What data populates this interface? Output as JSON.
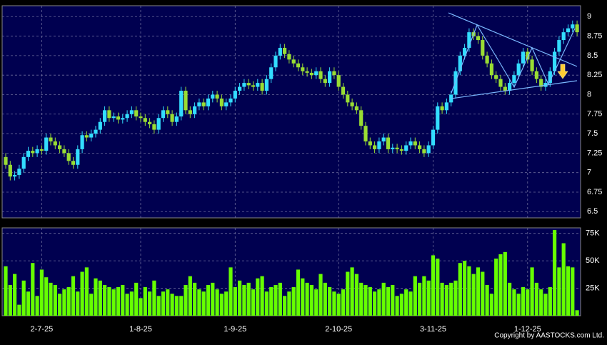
{
  "chart_data": {
    "type": "candlestick",
    "categories": [
      null,
      null,
      null,
      null,
      null,
      null,
      null,
      null,
      "2-7-25",
      null,
      null,
      null,
      null,
      null,
      null,
      null,
      null,
      null,
      null,
      null,
      null,
      null,
      null,
      null,
      null,
      null,
      null,
      null,
      null,
      null,
      "1-8-25",
      null,
      null,
      null,
      null,
      null,
      null,
      null,
      null,
      null,
      null,
      null,
      null,
      null,
      null,
      null,
      null,
      null,
      null,
      null,
      null,
      "1-9-25",
      null,
      null,
      null,
      null,
      null,
      null,
      null,
      null,
      null,
      null,
      null,
      null,
      null,
      null,
      null,
      null,
      null,
      null,
      null,
      null,
      null,
      null,
      "2-10-25",
      null,
      null,
      null,
      null,
      null,
      null,
      null,
      null,
      null,
      null,
      null,
      null,
      null,
      null,
      null,
      null,
      null,
      null,
      null,
      null,
      "3-11-25",
      null,
      null,
      null,
      null,
      null,
      null,
      null,
      null,
      null,
      null,
      null,
      null,
      null,
      null,
      null,
      null,
      null,
      null,
      null,
      null,
      "1-12-25",
      null,
      null,
      null,
      null,
      null,
      null,
      null,
      null,
      null,
      null,
      null
    ],
    "open": [
      7.2,
      7.1,
      6.95,
      6.97,
      7.05,
      7.2,
      7.28,
      7.25,
      7.3,
      7.28,
      7.45,
      7.4,
      7.35,
      7.3,
      7.25,
      7.15,
      7.1,
      7.3,
      7.48,
      7.45,
      7.5,
      7.55,
      7.65,
      7.8,
      7.7,
      7.72,
      7.68,
      7.7,
      7.75,
      7.8,
      7.72,
      7.7,
      7.65,
      7.62,
      7.55,
      7.7,
      7.8,
      7.75,
      7.65,
      7.72,
      8.05,
      7.8,
      7.75,
      7.85,
      7.9,
      7.85,
      7.95,
      8.0,
      7.95,
      7.85,
      7.9,
      7.95,
      8.05,
      8.1,
      8.15,
      8.12,
      8.1,
      8.15,
      8.05,
      8.2,
      8.35,
      8.5,
      8.6,
      8.52,
      8.45,
      8.4,
      8.35,
      8.3,
      8.28,
      8.25,
      8.3,
      8.2,
      8.15,
      8.3,
      8.25,
      8.1,
      8.0,
      7.9,
      7.85,
      7.8,
      7.6,
      7.4,
      7.35,
      7.3,
      7.4,
      7.45,
      7.3,
      7.32,
      7.3,
      7.28,
      7.35,
      7.4,
      7.35,
      7.3,
      7.25,
      7.35,
      7.55,
      7.85,
      7.8,
      7.9,
      8.0,
      8.3,
      8.5,
      8.6,
      8.8,
      8.75,
      8.7,
      8.5,
      8.4,
      8.25,
      8.2,
      8.1,
      8.05,
      8.15,
      8.25,
      8.4,
      8.55,
      8.45,
      8.3,
      8.2,
      8.1,
      8.15,
      8.3,
      8.55,
      8.7,
      8.8,
      8.85,
      8.9
    ],
    "high": [
      7.25,
      7.15,
      7.02,
      7.1,
      7.25,
      7.33,
      7.33,
      7.35,
      7.35,
      7.5,
      7.5,
      7.45,
      7.4,
      7.35,
      7.3,
      7.2,
      7.35,
      7.53,
      7.53,
      7.55,
      7.6,
      7.7,
      7.85,
      7.85,
      7.77,
      7.77,
      7.75,
      7.8,
      7.85,
      7.85,
      7.77,
      7.75,
      7.7,
      7.67,
      7.75,
      7.85,
      7.85,
      7.8,
      7.77,
      8.1,
      8.1,
      7.85,
      7.9,
      7.95,
      7.95,
      8.0,
      8.05,
      8.05,
      8.0,
      7.95,
      8.0,
      8.1,
      8.15,
      8.2,
      8.2,
      8.17,
      8.2,
      8.2,
      8.25,
      8.4,
      8.55,
      8.65,
      8.65,
      8.57,
      8.5,
      8.45,
      8.4,
      8.35,
      8.33,
      8.35,
      8.35,
      8.25,
      8.35,
      8.35,
      8.3,
      8.15,
      8.05,
      7.95,
      7.9,
      7.85,
      7.65,
      7.45,
      7.4,
      7.45,
      7.5,
      7.5,
      7.37,
      7.37,
      7.35,
      7.4,
      7.45,
      7.45,
      7.4,
      7.35,
      7.4,
      7.6,
      7.9,
      7.9,
      7.95,
      8.05,
      8.35,
      8.55,
      8.65,
      8.85,
      8.85,
      8.8,
      8.75,
      8.55,
      8.45,
      8.3,
      8.25,
      8.15,
      8.2,
      8.3,
      8.45,
      8.6,
      8.6,
      8.5,
      8.35,
      8.25,
      8.2,
      8.35,
      8.6,
      8.75,
      8.85,
      8.9,
      8.95,
      8.95
    ],
    "low": [
      7.05,
      6.9,
      6.9,
      6.92,
      7.0,
      7.15,
      7.2,
      7.2,
      7.23,
      7.23,
      7.35,
      7.3,
      7.25,
      7.2,
      7.1,
      7.05,
      7.05,
      7.25,
      7.4,
      7.4,
      7.45,
      7.5,
      7.6,
      7.65,
      7.65,
      7.63,
      7.63,
      7.65,
      7.7,
      7.67,
      7.65,
      7.6,
      7.57,
      7.5,
      7.5,
      7.65,
      7.7,
      7.6,
      7.6,
      7.67,
      7.75,
      7.7,
      7.7,
      7.8,
      7.8,
      7.8,
      7.9,
      7.9,
      7.8,
      7.8,
      7.85,
      7.9,
      8.0,
      8.05,
      8.07,
      8.05,
      8.05,
      8.0,
      8.0,
      8.15,
      8.3,
      8.45,
      8.47,
      8.4,
      8.35,
      8.3,
      8.25,
      8.23,
      8.2,
      8.2,
      8.15,
      8.1,
      8.1,
      8.2,
      8.05,
      7.95,
      7.85,
      7.8,
      7.75,
      7.55,
      7.35,
      7.3,
      7.25,
      7.25,
      7.35,
      7.25,
      7.25,
      7.25,
      7.23,
      7.23,
      7.3,
      7.3,
      7.25,
      7.2,
      7.2,
      7.3,
      7.5,
      7.75,
      7.75,
      7.85,
      7.95,
      8.25,
      8.45,
      8.55,
      8.7,
      8.65,
      8.45,
      8.35,
      8.2,
      8.15,
      8.05,
      8.0,
      8.0,
      8.1,
      8.2,
      8.35,
      8.4,
      8.25,
      8.15,
      8.05,
      8.05,
      8.1,
      8.25,
      8.5,
      8.65,
      8.75,
      8.8,
      8.75
    ],
    "close": [
      7.1,
      6.95,
      6.97,
      7.05,
      7.2,
      7.28,
      7.25,
      7.3,
      7.28,
      7.45,
      7.4,
      7.35,
      7.3,
      7.25,
      7.15,
      7.1,
      7.3,
      7.48,
      7.45,
      7.5,
      7.55,
      7.65,
      7.8,
      7.7,
      7.72,
      7.68,
      7.7,
      7.75,
      7.8,
      7.72,
      7.7,
      7.65,
      7.62,
      7.55,
      7.7,
      7.8,
      7.75,
      7.65,
      7.72,
      8.05,
      7.8,
      7.75,
      7.85,
      7.9,
      7.85,
      7.95,
      8.0,
      7.95,
      7.85,
      7.9,
      7.95,
      8.05,
      8.1,
      8.15,
      8.12,
      8.1,
      8.15,
      8.05,
      8.2,
      8.35,
      8.5,
      8.6,
      8.52,
      8.45,
      8.4,
      8.35,
      8.3,
      8.28,
      8.25,
      8.3,
      8.2,
      8.15,
      8.3,
      8.25,
      8.1,
      8.0,
      7.9,
      7.85,
      7.8,
      7.6,
      7.4,
      7.35,
      7.3,
      7.4,
      7.45,
      7.3,
      7.32,
      7.3,
      7.28,
      7.35,
      7.4,
      7.35,
      7.3,
      7.25,
      7.35,
      7.55,
      7.85,
      7.8,
      7.9,
      8.0,
      8.3,
      8.5,
      8.6,
      8.8,
      8.75,
      8.7,
      8.5,
      8.4,
      8.25,
      8.2,
      8.1,
      8.05,
      8.15,
      8.25,
      8.4,
      8.55,
      8.45,
      8.3,
      8.2,
      8.1,
      8.15,
      8.3,
      8.55,
      8.7,
      8.8,
      8.85,
      8.9,
      8.8
    ],
    "volume": [
      45000,
      28000,
      38000,
      10000,
      32000,
      22000,
      48000,
      18000,
      42000,
      35000,
      30000,
      28000,
      20000,
      24000,
      26000,
      36000,
      22000,
      40000,
      44000,
      20000,
      34000,
      32000,
      28000,
      26000,
      24000,
      26000,
      28000,
      20000,
      22000,
      30000,
      16000,
      26000,
      22000,
      32000,
      18000,
      22000,
      24000,
      20000,
      18000,
      18000,
      28000,
      36000,
      30000,
      24000,
      22000,
      28000,
      30000,
      24000,
      20000,
      22000,
      44000,
      26000,
      32000,
      28000,
      30000,
      24000,
      34000,
      36000,
      22000,
      26000,
      28000,
      30000,
      18000,
      22000,
      26000,
      42000,
      34000,
      30000,
      28000,
      24000,
      38000,
      30000,
      26000,
      22000,
      20000,
      24000,
      40000,
      44000,
      38000,
      30000,
      28000,
      26000,
      22000,
      24000,
      30000,
      26000,
      28000,
      18000,
      20000,
      24000,
      22000,
      36000,
      30000,
      36000,
      32000,
      55000,
      52000,
      30000,
      28000,
      30000,
      32000,
      48000,
      50000,
      45000,
      38000,
      44000,
      40000,
      28000,
      20000,
      52000,
      56000,
      58000,
      30000,
      24000,
      20000,
      26000,
      24000,
      44000,
      30000,
      24000,
      20000,
      26000,
      78000,
      44000,
      66000,
      45000,
      44000,
      5000
    ],
    "up_color": "#33ddff",
    "down_color": "#99dd33",
    "volume_color": "#66ff00",
    "ylim": [
      6.42,
      9.14
    ],
    "yticks": [
      6.5,
      6.75,
      7,
      7.25,
      7.5,
      7.75,
      8,
      8.25,
      8.5,
      8.75,
      9
    ],
    "volume_ylim": [
      0,
      80000
    ],
    "volume_yticks": [
      {
        "value": 25000,
        "label": "25K"
      },
      {
        "value": 50000,
        "label": "50K"
      },
      {
        "value": 75000,
        "label": "75K"
      }
    ],
    "grid": true,
    "footer": "Copyright by AASTOCKS.com Ltd."
  }
}
